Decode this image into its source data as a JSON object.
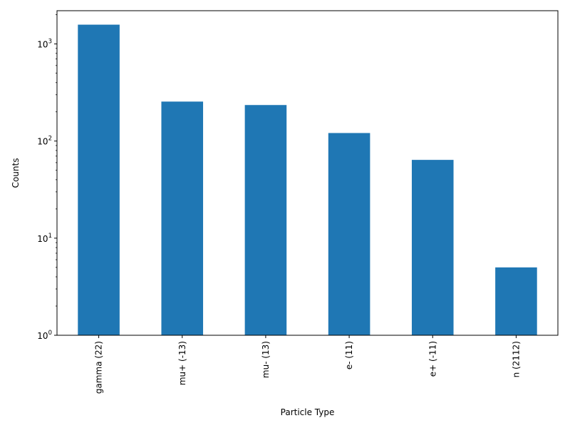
{
  "chart_data": {
    "type": "bar",
    "title": "",
    "xlabel": "Particle Type",
    "ylabel": "Counts",
    "yscale": "log",
    "ylim": [
      1,
      2200
    ],
    "grid": false,
    "legend": "none",
    "categories": [
      "gamma (22)",
      "mu+ (-13)",
      "mu- (13)",
      "e- (11)",
      "e+ (-11)",
      "n (2112)"
    ],
    "values": [
      1580,
      255,
      235,
      121,
      64,
      5
    ],
    "y_ticks": [
      {
        "value": 1,
        "base": "10",
        "exp": "0"
      },
      {
        "value": 10,
        "base": "10",
        "exp": "1"
      },
      {
        "value": 100,
        "base": "10",
        "exp": "2"
      },
      {
        "value": 1000,
        "base": "10",
        "exp": "3"
      }
    ],
    "bar_color": "#1f77b4"
  }
}
